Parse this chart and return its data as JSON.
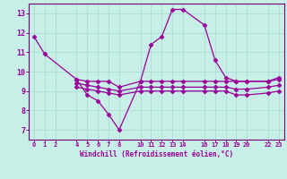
{
  "xlabel": "Windchill (Refroidissement éolien,°C)",
  "background_color": "#c8eee8",
  "grid_color": "#aaddd6",
  "line_color": "#990099",
  "spine_color": "#770077",
  "x_ticks": [
    0,
    1,
    2,
    4,
    5,
    6,
    7,
    8,
    10,
    11,
    12,
    13,
    14,
    16,
    17,
    18,
    19,
    20,
    22,
    23
  ],
  "x_tick_labels": [
    "0",
    "1",
    "2",
    "4",
    "5",
    "6",
    "7",
    "8",
    "10",
    "11",
    "12",
    "13",
    "14",
    "16",
    "17",
    "18",
    "19",
    "20",
    "22",
    "23"
  ],
  "ylim": [
    6.5,
    13.5
  ],
  "yticks": [
    7,
    8,
    9,
    10,
    11,
    12,
    13
  ],
  "series": {
    "line1": {
      "x": [
        0,
        1,
        4,
        5,
        6,
        7,
        8,
        10,
        11,
        12,
        13,
        14,
        16,
        17,
        18,
        19,
        20,
        22,
        23
      ],
      "y": [
        11.8,
        10.9,
        9.6,
        8.8,
        8.5,
        7.8,
        7.0,
        9.5,
        11.4,
        11.8,
        13.2,
        13.2,
        12.4,
        10.6,
        9.7,
        9.5,
        9.5,
        9.5,
        9.7
      ]
    },
    "line2": {
      "x": [
        4,
        5,
        6,
        7,
        8,
        10,
        11,
        12,
        13,
        14,
        16,
        17,
        18,
        19,
        20,
        22,
        23
      ],
      "y": [
        9.6,
        9.5,
        9.5,
        9.5,
        9.2,
        9.5,
        9.5,
        9.5,
        9.5,
        9.5,
        9.5,
        9.5,
        9.5,
        9.5,
        9.5,
        9.5,
        9.6
      ]
    },
    "line3": {
      "x": [
        4,
        5,
        6,
        7,
        8,
        10,
        11,
        12,
        13,
        14,
        16,
        17,
        18,
        19,
        20,
        22,
        23
      ],
      "y": [
        9.4,
        9.3,
        9.2,
        9.1,
        9.0,
        9.2,
        9.2,
        9.2,
        9.2,
        9.2,
        9.2,
        9.2,
        9.2,
        9.1,
        9.1,
        9.2,
        9.3
      ]
    },
    "line4": {
      "x": [
        4,
        5,
        6,
        7,
        8,
        10,
        11,
        12,
        13,
        14,
        16,
        17,
        18,
        19,
        20,
        22,
        23
      ],
      "y": [
        9.2,
        9.1,
        9.0,
        8.9,
        8.8,
        9.0,
        9.0,
        9.0,
        9.0,
        9.0,
        9.0,
        9.0,
        9.0,
        8.8,
        8.8,
        8.9,
        9.0
      ]
    }
  }
}
